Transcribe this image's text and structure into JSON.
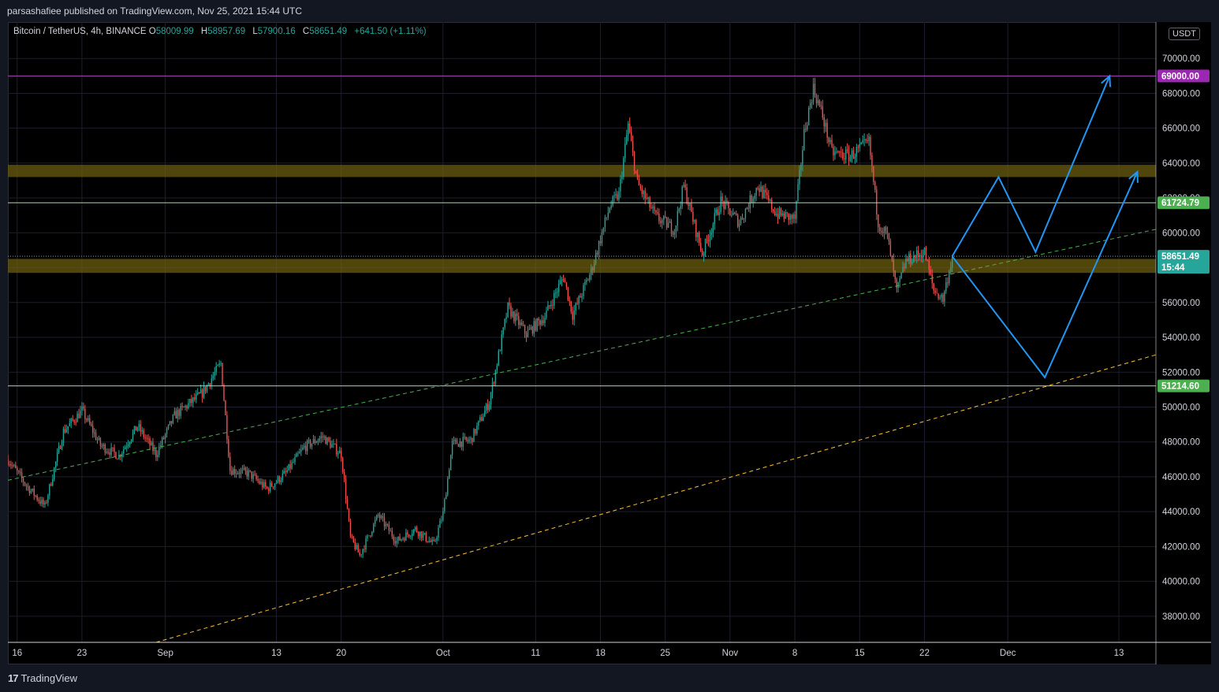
{
  "header": {
    "published_by": "parsashafiee published on TradingView.com, Nov 25, 2021 15:44 UTC"
  },
  "legend": {
    "symbol": "Bitcoin / TetherUS, 4h, BINANCE",
    "open_label": "O",
    "open": "58009.99",
    "high_label": "H",
    "high": "58957.69",
    "low_label": "L",
    "low": "57900.16",
    "close_label": "C",
    "close": "58651.49",
    "change": "+641.50 (+1.11%)"
  },
  "currency_badge": "USDT",
  "footer": {
    "brand": "TradingView",
    "brand_mark": "17"
  },
  "colors": {
    "up": "#26a69a",
    "down": "#ef5350",
    "support_line": "#a5d6a7",
    "resistance_69k": "#ab47bc",
    "zone": "#6b5e10",
    "channel_mid": "#4caf50",
    "channel_low": "#fbc02d",
    "projection": "#2196f3",
    "last_price": "#26a69a"
  },
  "chart_data": {
    "type": "candlestick",
    "timeframe": "4h",
    "ylim": [
      36500,
      72000
    ],
    "y_ticks": [
      "38000.00",
      "40000.00",
      "42000.00",
      "44000.00",
      "46000.00",
      "48000.00",
      "50000.00",
      "52000.00",
      "54000.00",
      "56000.00",
      "58000.00",
      "60000.00",
      "62000.00",
      "64000.00",
      "66000.00",
      "68000.00",
      "70000.00"
    ],
    "x_ticks": [
      {
        "label": "16",
        "date": "2021-08-16"
      },
      {
        "label": "23",
        "date": "2021-08-23"
      },
      {
        "label": "Sep",
        "date": "2021-09-01"
      },
      {
        "label": "13",
        "date": "2021-09-13"
      },
      {
        "label": "20",
        "date": "2021-09-20"
      },
      {
        "label": "Oct",
        "date": "2021-10-01"
      },
      {
        "label": "11",
        "date": "2021-10-11"
      },
      {
        "label": "18",
        "date": "2021-10-18"
      },
      {
        "label": "25",
        "date": "2021-10-25"
      },
      {
        "label": "Nov",
        "date": "2021-11-01"
      },
      {
        "label": "8",
        "date": "2021-11-08"
      },
      {
        "label": "15",
        "date": "2021-11-15"
      },
      {
        "label": "22",
        "date": "2021-11-22"
      },
      {
        "label": "Dec",
        "date": "2021-12-01"
      },
      {
        "label": "13",
        "date": "2021-12-13"
      }
    ],
    "price_path": [
      [
        "2021-08-15",
        47000
      ],
      [
        "2021-08-17",
        45500
      ],
      [
        "2021-08-19",
        44300
      ],
      [
        "2021-08-21",
        48600
      ],
      [
        "2021-08-23",
        49800
      ],
      [
        "2021-08-25",
        47800
      ],
      [
        "2021-08-27",
        47200
      ],
      [
        "2021-08-29",
        48900
      ],
      [
        "2021-08-31",
        47300
      ],
      [
        "2021-09-02",
        49500
      ],
      [
        "2021-09-05",
        50800
      ],
      [
        "2021-09-07",
        52500
      ],
      [
        "2021-09-08",
        46400
      ],
      [
        "2021-09-10",
        46200
      ],
      [
        "2021-09-12",
        45300
      ],
      [
        "2021-09-14",
        46200
      ],
      [
        "2021-09-16",
        47700
      ],
      [
        "2021-09-18",
        48300
      ],
      [
        "2021-09-20",
        47300
      ],
      [
        "2021-09-21",
        42500
      ],
      [
        "2021-09-22",
        41500
      ],
      [
        "2021-09-24",
        43800
      ],
      [
        "2021-09-26",
        42300
      ],
      [
        "2021-09-28",
        43000
      ],
      [
        "2021-09-30",
        42100
      ],
      [
        "2021-10-01",
        43900
      ],
      [
        "2021-10-02",
        47900
      ],
      [
        "2021-10-04",
        48100
      ],
      [
        "2021-10-06",
        50300
      ],
      [
        "2021-10-08",
        55700
      ],
      [
        "2021-10-10",
        54200
      ],
      [
        "2021-10-12",
        55200
      ],
      [
        "2021-10-14",
        57500
      ],
      [
        "2021-10-15",
        55300
      ],
      [
        "2021-10-17",
        57800
      ],
      [
        "2021-10-19",
        61500
      ],
      [
        "2021-10-20",
        62200
      ],
      [
        "2021-10-21",
        66200
      ],
      [
        "2021-10-22",
        62800
      ],
      [
        "2021-10-24",
        60900
      ],
      [
        "2021-10-26",
        60200
      ],
      [
        "2021-10-27",
        62700
      ],
      [
        "2021-10-29",
        58800
      ],
      [
        "2021-10-31",
        61800
      ],
      [
        "2021-11-02",
        60600
      ],
      [
        "2021-11-04",
        62700
      ],
      [
        "2021-11-06",
        61100
      ],
      [
        "2021-11-08",
        60800
      ],
      [
        "2021-11-09",
        65700
      ],
      [
        "2021-11-10",
        68300
      ],
      [
        "2021-11-11",
        66700
      ],
      [
        "2021-11-12",
        64600
      ],
      [
        "2021-11-14",
        64400
      ],
      [
        "2021-11-16",
        65200
      ],
      [
        "2021-11-17",
        60600
      ],
      [
        "2021-11-18",
        59800
      ],
      [
        "2021-11-19",
        56600
      ],
      [
        "2021-11-20",
        58400
      ],
      [
        "2021-11-22",
        58900
      ],
      [
        "2021-11-23",
        56700
      ],
      [
        "2021-11-24",
        56200
      ],
      [
        "2021-11-25",
        58651
      ]
    ],
    "horizontal_levels": [
      {
        "price": 69000,
        "label": "69000.00",
        "color": "#ab47bc"
      },
      {
        "price": 61724.79,
        "label": "61724.79",
        "color": "#a5d6a7"
      },
      {
        "price": 51214.6,
        "label": "51214.60",
        "color": "#a5d6a7"
      }
    ],
    "zones": [
      {
        "from": 63200,
        "to": 63900
      },
      {
        "from": 57700,
        "to": 58500
      }
    ],
    "last_price": {
      "price": 58651.49,
      "label": "58651.49",
      "countdown": "15:44"
    },
    "trendlines": [
      {
        "style": "dashed",
        "color": "#4caf50",
        "from": [
          "2021-08-15",
          45800
        ],
        "to": [
          "2021-12-17",
          60200
        ]
      },
      {
        "style": "dashed",
        "color": "#fbc02d",
        "from": [
          "2021-08-31",
          36500
        ],
        "to": [
          "2021-12-17",
          53000
        ]
      }
    ],
    "projections": [
      {
        "name": "path-a",
        "points": [
          [
            "2021-11-25",
            58651
          ],
          [
            "2021-11-30",
            63200
          ],
          [
            "2021-12-04",
            58900
          ],
          [
            "2021-12-12",
            69000
          ]
        ]
      },
      {
        "name": "path-b",
        "points": [
          [
            "2021-11-25",
            58651
          ],
          [
            "2021-12-05",
            51700
          ],
          [
            "2021-12-15",
            63500
          ]
        ]
      }
    ]
  }
}
